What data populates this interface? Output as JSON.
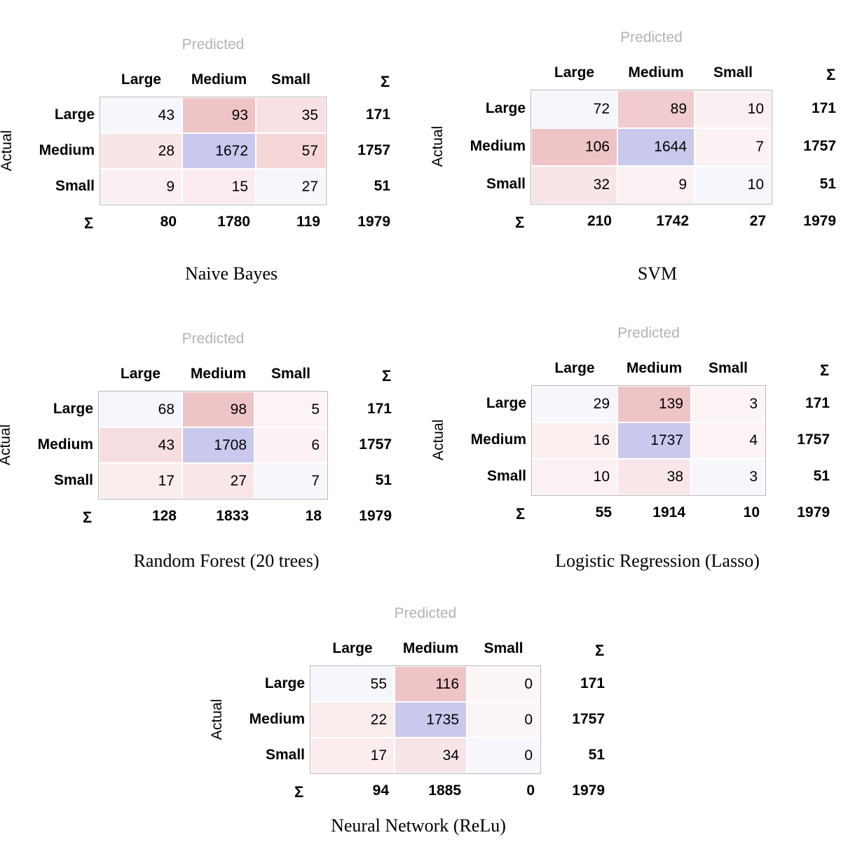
{
  "chart_data": [
    {
      "type": "heatmap",
      "title": "Naive Bayes",
      "xlabel": "Predicted",
      "ylabel": "Actual",
      "categories": [
        "Large",
        "Medium",
        "Small"
      ],
      "matrix": [
        [
          43,
          93,
          35
        ],
        [
          28,
          1672,
          57
        ],
        [
          9,
          15,
          27
        ]
      ],
      "row_totals": [
        171,
        1757,
        51
      ],
      "col_totals": [
        80,
        1780,
        119
      ],
      "total": 1979,
      "sum_symbol": "Σ"
    },
    {
      "type": "heatmap",
      "title": "SVM",
      "xlabel": "Predicted",
      "ylabel": "Actual",
      "categories": [
        "Large",
        "Medium",
        "Small"
      ],
      "matrix": [
        [
          72,
          89,
          10
        ],
        [
          106,
          1644,
          7
        ],
        [
          32,
          9,
          10
        ]
      ],
      "row_totals": [
        171,
        1757,
        51
      ],
      "col_totals": [
        210,
        1742,
        27
      ],
      "total": 1979,
      "sum_symbol": "Σ"
    },
    {
      "type": "heatmap",
      "title": "Random Forest (20 trees)",
      "xlabel": "Predicted",
      "ylabel": "Actual",
      "categories": [
        "Large",
        "Medium",
        "Small"
      ],
      "matrix": [
        [
          68,
          98,
          5
        ],
        [
          43,
          1708,
          6
        ],
        [
          17,
          27,
          7
        ]
      ],
      "row_totals": [
        171,
        1757,
        51
      ],
      "col_totals": [
        128,
        1833,
        18
      ],
      "total": 1979,
      "sum_symbol": "Σ"
    },
    {
      "type": "heatmap",
      "title": "Logistic Regression (Lasso)",
      "xlabel": "Predicted",
      "ylabel": "Actual",
      "categories": [
        "Large",
        "Medium",
        "Small"
      ],
      "matrix": [
        [
          29,
          139,
          3
        ],
        [
          16,
          1737,
          4
        ],
        [
          10,
          38,
          3
        ]
      ],
      "row_totals": [
        171,
        1757,
        51
      ],
      "col_totals": [
        55,
        1914,
        10
      ],
      "total": 1979,
      "sum_symbol": "Σ"
    },
    {
      "type": "heatmap",
      "title": "Neural Network (ReLu)",
      "xlabel": "Predicted",
      "ylabel": "Actual",
      "categories": [
        "Large",
        "Medium",
        "Small"
      ],
      "matrix": [
        [
          55,
          116,
          0
        ],
        [
          22,
          1735,
          0
        ],
        [
          17,
          34,
          0
        ]
      ],
      "row_totals": [
        171,
        1757,
        51
      ],
      "col_totals": [
        94,
        1885,
        0
      ],
      "total": 1979,
      "sum_symbol": "Σ"
    }
  ],
  "colors": {
    "correct_max": "#c9c9ee",
    "error_max": "#efc4c6",
    "low": "#fdf6f7",
    "grid_border": "#b5b5b5",
    "predicted_label": "#b3b3b3"
  }
}
